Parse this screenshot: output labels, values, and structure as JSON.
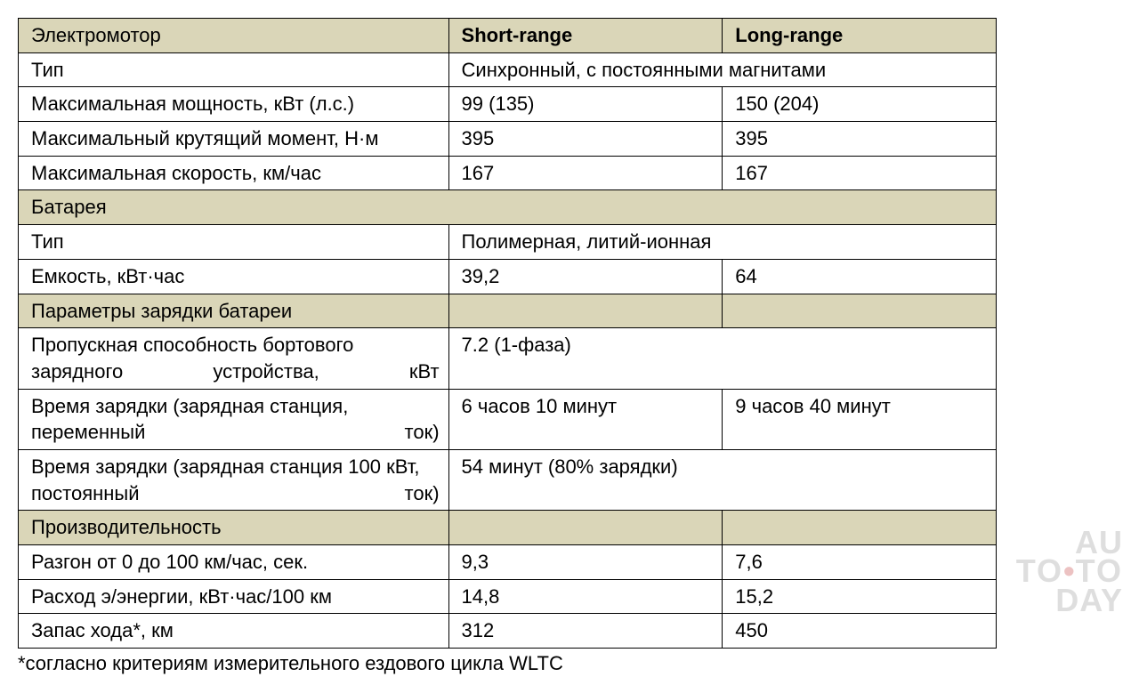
{
  "table": {
    "style": {
      "section_bg": "#dad6b8",
      "border_color": "#000000",
      "font_size_pt": 17,
      "col_widths_pct": [
        44,
        28,
        28
      ]
    },
    "header": {
      "param_label": "Электромотор",
      "short_label": "Short-range",
      "long_label": "Long-range"
    },
    "rows": [
      {
        "kind": "merged",
        "label": "Тип",
        "value": "Синхронный, с постоянными магнитами"
      },
      {
        "kind": "data",
        "label": "Максимальная мощность, кВт (л.с.)",
        "short": "99 (135)",
        "long": "150 (204)"
      },
      {
        "kind": "data",
        "label": "Максимальный крутящий момент, Н·м",
        "short": "395",
        "long": "395"
      },
      {
        "kind": "data",
        "label": "Максимальная скорость, км/час",
        "short": "167",
        "long": "167"
      },
      {
        "kind": "section",
        "label": "Батарея"
      },
      {
        "kind": "merged",
        "label": "Тип",
        "value": "Полимерная, литий-ионная"
      },
      {
        "kind": "data",
        "label": "Емкость, кВт·час",
        "short": "39,2",
        "long": "64"
      },
      {
        "kind": "section_split",
        "label": "Параметры зарядки батареи"
      },
      {
        "kind": "merged",
        "justify": true,
        "label": "Пропускная способность бортового зарядного устройства, кВт",
        "value": "7.2 (1-фаза)"
      },
      {
        "kind": "data",
        "justify": true,
        "label": "Время зарядки (зарядная станция, переменный ток)",
        "short": "6 часов 10 минут",
        "long": "9 часов 40 минут"
      },
      {
        "kind": "merged",
        "justify": true,
        "label": "Время зарядки (зарядная станция 100 кВт, постоянный ток)",
        "value": "54 минут (80% зарядки)"
      },
      {
        "kind": "section_split",
        "label": "Производительность"
      },
      {
        "kind": "data",
        "label": "Разгон от 0 до 100 км/час, сек.",
        "short": "9,3",
        "long": "7,6"
      },
      {
        "kind": "data",
        "label": "Расход э/энергии, кВт·час/100 км",
        "short": "14,8",
        "long": "15,2"
      },
      {
        "kind": "data",
        "label": "Запас хода*, км",
        "short": "312",
        "long": "450"
      }
    ],
    "footnote": "*согласно критериям измерительного ездового цикла WLTC"
  },
  "watermark": {
    "line1": "AU",
    "line2a": "TO",
    "line2dot": "•",
    "line2b": "TO",
    "line3": "DAY"
  }
}
